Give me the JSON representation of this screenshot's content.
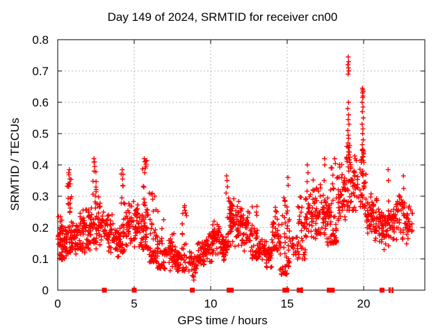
{
  "figure": {
    "background": "#ffffff",
    "text_color": "#000000"
  },
  "chart_data": {
    "type": "scatter",
    "title": "Day 149 of 2024, SRMTID for receiver cn00",
    "xlabel": "GPS time / hours",
    "ylabel": "SRMTID / TECUs",
    "xlim": [
      0,
      24
    ],
    "ylim": [
      0,
      0.8
    ],
    "xticks": [
      0,
      5,
      10,
      15,
      20
    ],
    "xtick_labels": [
      "0",
      "5",
      "10",
      "15",
      "20"
    ],
    "yticks": [
      0,
      0.1,
      0.2,
      0.3,
      0.4,
      0.5,
      0.6,
      0.7,
      0.8
    ],
    "ytick_labels": [
      "0",
      "0.1",
      "0.2",
      "0.3",
      "0.4",
      "0.5",
      "0.6",
      "0.7",
      "0.8"
    ],
    "grid": {
      "show": true,
      "color": "#b4b4b4",
      "dash": "2,3",
      "x_gridlines": [
        5,
        10,
        15,
        20
      ],
      "y_gridlines": [
        0.1,
        0.2,
        0.3,
        0.4,
        0.5,
        0.6,
        0.7
      ]
    },
    "legend": null,
    "marker": {
      "symbol": "plus",
      "color": "#ff0000",
      "size": 7,
      "stroke": 1.4
    },
    "series_name": "SRMTID",
    "seed": 7,
    "clusters_format": [
      "t_start",
      "t_end",
      "y_min",
      "y_max",
      "n_points",
      "shape(0=band,1=low-biased spike,2=uniform column)"
    ],
    "clusters": [
      [
        0.0,
        0.3,
        0.08,
        0.24,
        30,
        0
      ],
      [
        0.25,
        0.65,
        0.09,
        0.21,
        35,
        0
      ],
      [
        0.6,
        0.9,
        0.12,
        0.38,
        38,
        1
      ],
      [
        0.85,
        1.3,
        0.1,
        0.24,
        40,
        0
      ],
      [
        1.3,
        1.8,
        0.1,
        0.26,
        45,
        0
      ],
      [
        1.8,
        2.25,
        0.11,
        0.28,
        45,
        0
      ],
      [
        2.3,
        2.52,
        0.15,
        0.42,
        25,
        1
      ],
      [
        2.45,
        3.0,
        0.12,
        0.31,
        45,
        0
      ],
      [
        3.0,
        3.6,
        0.1,
        0.26,
        40,
        0
      ],
      [
        3.6,
        4.1,
        0.1,
        0.23,
        40,
        0
      ],
      [
        4.1,
        4.4,
        0.12,
        0.38,
        28,
        1
      ],
      [
        4.4,
        5.0,
        0.12,
        0.3,
        40,
        0
      ],
      [
        5.0,
        5.5,
        0.12,
        0.29,
        40,
        0
      ],
      [
        5.5,
        5.95,
        0.13,
        0.42,
        50,
        1
      ],
      [
        5.95,
        6.5,
        0.09,
        0.31,
        45,
        1
      ],
      [
        6.5,
        7.0,
        0.07,
        0.26,
        40,
        1
      ],
      [
        7.0,
        7.6,
        0.06,
        0.19,
        40,
        0
      ],
      [
        7.6,
        8.1,
        0.05,
        0.16,
        38,
        0
      ],
      [
        8.1,
        8.45,
        0.06,
        0.27,
        25,
        1
      ],
      [
        8.45,
        9.1,
        0.03,
        0.13,
        35,
        0
      ],
      [
        9.1,
        9.6,
        0.06,
        0.16,
        35,
        0
      ],
      [
        9.6,
        10.1,
        0.08,
        0.19,
        40,
        0
      ],
      [
        10.1,
        10.6,
        0.1,
        0.24,
        45,
        0
      ],
      [
        10.6,
        11.0,
        0.08,
        0.21,
        40,
        0
      ],
      [
        11.0,
        11.2,
        0.12,
        0.36,
        18,
        1
      ],
      [
        11.2,
        11.6,
        0.12,
        0.31,
        42,
        0
      ],
      [
        11.6,
        12.1,
        0.12,
        0.3,
        42,
        0
      ],
      [
        12.1,
        12.7,
        0.11,
        0.27,
        40,
        0
      ],
      [
        12.7,
        13.1,
        0.1,
        0.27,
        35,
        1
      ],
      [
        13.1,
        13.6,
        0.08,
        0.18,
        35,
        0
      ],
      [
        13.6,
        14.0,
        0.06,
        0.16,
        32,
        0
      ],
      [
        14.0,
        14.5,
        0.1,
        0.28,
        40,
        0
      ],
      [
        14.5,
        15.0,
        0.05,
        0.3,
        38,
        1
      ],
      [
        15.0,
        15.15,
        0.04,
        0.33,
        16,
        2
      ],
      [
        15.2,
        15.7,
        0.08,
        0.2,
        18,
        0
      ],
      [
        15.7,
        16.2,
        0.1,
        0.35,
        35,
        1
      ],
      [
        16.2,
        16.8,
        0.14,
        0.36,
        45,
        0
      ],
      [
        16.8,
        17.4,
        0.15,
        0.35,
        45,
        0
      ],
      [
        17.4,
        17.8,
        0.13,
        0.33,
        38,
        0
      ],
      [
        17.8,
        18.3,
        0.15,
        0.4,
        45,
        1
      ],
      [
        18.3,
        18.8,
        0.2,
        0.42,
        45,
        0
      ],
      [
        18.85,
        19.15,
        0.25,
        0.48,
        32,
        2
      ],
      [
        19.15,
        19.7,
        0.24,
        0.44,
        35,
        0
      ],
      [
        19.75,
        20.05,
        0.26,
        0.45,
        32,
        2
      ],
      [
        20.05,
        20.6,
        0.17,
        0.33,
        40,
        0
      ],
      [
        20.6,
        21.1,
        0.15,
        0.3,
        40,
        0
      ],
      [
        21.1,
        21.6,
        0.12,
        0.28,
        38,
        0
      ],
      [
        21.6,
        22.1,
        0.14,
        0.3,
        40,
        0
      ],
      [
        22.1,
        22.7,
        0.15,
        0.33,
        40,
        0
      ],
      [
        22.7,
        23.2,
        0.13,
        0.29,
        30,
        0
      ]
    ],
    "outliers": [
      [
        0.05,
        0.235
      ],
      [
        0.72,
        0.375
      ],
      [
        0.76,
        0.385
      ],
      [
        0.79,
        0.355
      ],
      [
        0.68,
        0.34
      ],
      [
        2.37,
        0.42
      ],
      [
        2.4,
        0.41
      ],
      [
        2.42,
        0.395
      ],
      [
        2.38,
        0.38
      ],
      [
        4.22,
        0.385
      ],
      [
        4.27,
        0.37
      ],
      [
        4.24,
        0.355
      ],
      [
        5.66,
        0.42
      ],
      [
        5.7,
        0.41
      ],
      [
        5.73,
        0.39
      ],
      [
        5.68,
        0.375
      ],
      [
        8.3,
        0.27
      ],
      [
        8.32,
        0.255
      ],
      [
        11.04,
        0.365
      ],
      [
        11.07,
        0.35
      ],
      [
        11.1,
        0.33
      ],
      [
        15.05,
        0.36
      ],
      [
        15.07,
        0.335
      ],
      [
        16.32,
        0.4
      ],
      [
        16.36,
        0.375
      ],
      [
        17.44,
        0.42
      ],
      [
        17.46,
        0.4
      ],
      [
        17.42,
        0.35
      ],
      [
        18.1,
        0.42
      ],
      [
        18.15,
        0.405
      ],
      [
        18.99,
        0.745
      ],
      [
        19.02,
        0.73
      ],
      [
        18.97,
        0.72
      ],
      [
        19.0,
        0.71
      ],
      [
        19.03,
        0.7
      ],
      [
        18.98,
        0.69
      ],
      [
        19.01,
        0.6
      ],
      [
        18.96,
        0.58
      ],
      [
        19.02,
        0.56
      ],
      [
        18.99,
        0.545
      ],
      [
        19.04,
        0.53
      ],
      [
        18.97,
        0.51
      ],
      [
        19.0,
        0.495
      ],
      [
        19.02,
        0.485
      ],
      [
        18.98,
        0.47
      ],
      [
        19.05,
        0.455
      ],
      [
        19.92,
        0.645
      ],
      [
        19.95,
        0.64
      ],
      [
        19.97,
        0.635
      ],
      [
        19.93,
        0.63
      ],
      [
        19.96,
        0.62
      ],
      [
        19.94,
        0.615
      ],
      [
        19.9,
        0.6
      ],
      [
        19.96,
        0.585
      ],
      [
        19.92,
        0.57
      ],
      [
        19.98,
        0.55
      ],
      [
        19.9,
        0.53
      ],
      [
        19.95,
        0.515
      ],
      [
        19.93,
        0.5
      ],
      [
        19.97,
        0.48
      ],
      [
        19.91,
        0.465
      ],
      [
        19.94,
        0.45
      ],
      [
        19.99,
        0.435
      ],
      [
        19.92,
        0.425
      ],
      [
        19.96,
        0.415
      ],
      [
        20.15,
        0.37
      ],
      [
        20.12,
        0.345
      ],
      [
        21.6,
        0.385
      ],
      [
        21.62,
        0.35
      ],
      [
        22.6,
        0.365
      ],
      [
        22.62,
        0.325
      ]
    ],
    "zero_markers": {
      "symbol": "filled-square",
      "color": "#ff0000",
      "y": 0,
      "x": [
        3.05,
        5.0,
        8.8,
        11.2,
        11.35,
        14.85,
        14.97,
        15.78,
        17.75,
        17.95,
        21.2
      ],
      "thin_x": [
        15.97,
        21.7,
        21.88
      ]
    }
  }
}
